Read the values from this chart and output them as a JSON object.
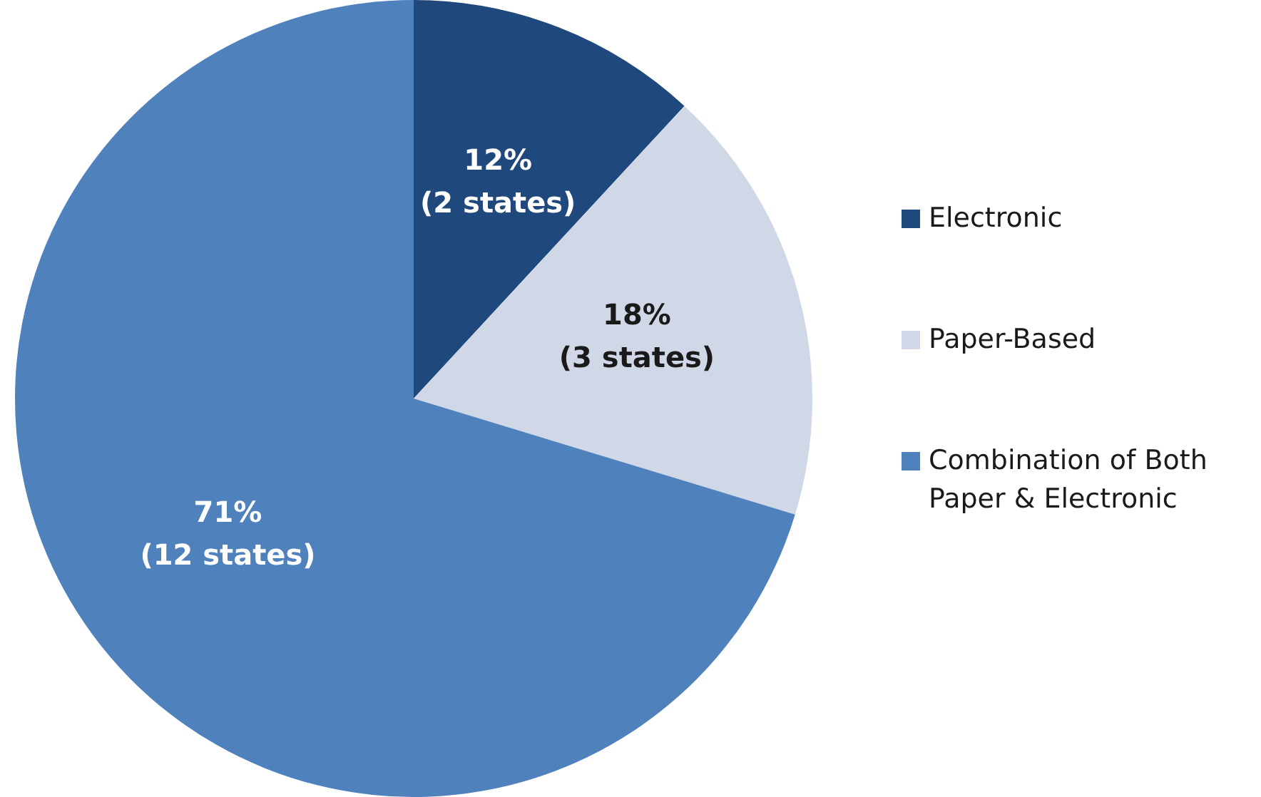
{
  "chart_data": {
    "type": "pie",
    "categories": [
      "Electronic",
      "Paper-Based",
      "Combination of Both Paper & Electronic"
    ],
    "values": [
      12,
      18,
      71
    ],
    "colors": [
      "#1f497d",
      "#d0d8e8",
      "#4f81bd"
    ],
    "value_labels": [
      "12%\n(2 states)",
      "18%\n(3 states)",
      "71%\n(12 states)"
    ],
    "legend": "right"
  }
}
